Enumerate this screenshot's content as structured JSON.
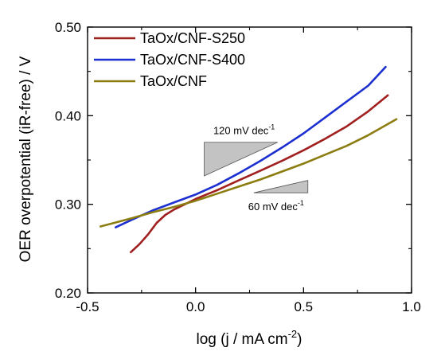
{
  "chart_data": {
    "type": "line",
    "xlabel": {
      "main": "log (j / mA cm",
      "sup": "-2",
      "tail": ")"
    },
    "ylabel": "OER overpotential (iR-free) / V",
    "xlim": [
      -0.5,
      1.0
    ],
    "ylim": [
      0.2,
      0.5
    ],
    "xticks": [
      -0.5,
      0.0,
      0.5,
      1.0
    ],
    "xtick_labels": [
      "-0.5",
      "0.0",
      "0.5",
      "1.0"
    ],
    "yticks": [
      0.2,
      0.3,
      0.4,
      0.5
    ],
    "ytick_labels": [
      "0.20",
      "0.30",
      "0.40",
      "0.50"
    ],
    "grid": false,
    "legend_position": "top-left",
    "series": [
      {
        "name": "TaOx/CNF-S250",
        "color": "#a01f1f",
        "points": [
          [
            -0.3,
            0.246
          ],
          [
            -0.26,
            0.255
          ],
          [
            -0.22,
            0.266
          ],
          [
            -0.18,
            0.279
          ],
          [
            -0.14,
            0.288
          ],
          [
            -0.1,
            0.294
          ],
          [
            -0.05,
            0.3
          ],
          [
            0.0,
            0.306
          ],
          [
            0.05,
            0.311
          ],
          [
            0.1,
            0.316
          ],
          [
            0.2,
            0.327
          ],
          [
            0.3,
            0.338
          ],
          [
            0.4,
            0.349
          ],
          [
            0.5,
            0.361
          ],
          [
            0.6,
            0.374
          ],
          [
            0.7,
            0.388
          ],
          [
            0.8,
            0.405
          ],
          [
            0.89,
            0.423
          ]
        ]
      },
      {
        "name": "TaOx/CNF-S400",
        "color": "#1c2fd0",
        "points": [
          [
            -0.37,
            0.274
          ],
          [
            -0.3,
            0.282
          ],
          [
            -0.2,
            0.293
          ],
          [
            -0.1,
            0.302
          ],
          [
            0.0,
            0.311
          ],
          [
            0.1,
            0.322
          ],
          [
            0.2,
            0.335
          ],
          [
            0.3,
            0.349
          ],
          [
            0.4,
            0.364
          ],
          [
            0.5,
            0.38
          ],
          [
            0.6,
            0.398
          ],
          [
            0.7,
            0.416
          ],
          [
            0.8,
            0.434
          ],
          [
            0.88,
            0.455
          ]
        ]
      },
      {
        "name": "TaOx/CNF",
        "color": "#8c7d10",
        "points": [
          [
            -0.44,
            0.275
          ],
          [
            -0.3,
            0.284
          ],
          [
            -0.2,
            0.291
          ],
          [
            -0.1,
            0.297
          ],
          [
            0.0,
            0.304
          ],
          [
            0.1,
            0.312
          ],
          [
            0.2,
            0.32
          ],
          [
            0.3,
            0.328
          ],
          [
            0.4,
            0.337
          ],
          [
            0.5,
            0.346
          ],
          [
            0.6,
            0.356
          ],
          [
            0.7,
            0.366
          ],
          [
            0.8,
            0.378
          ],
          [
            0.93,
            0.396
          ]
        ]
      }
    ],
    "annotations": [
      {
        "text": "120 mV dec",
        "sup": "-1",
        "triangle": [
          [
            0.04,
            0.332
          ],
          [
            0.04,
            0.37
          ],
          [
            0.38,
            0.37
          ]
        ]
      },
      {
        "text": "60 mV dec",
        "sup": "-1",
        "triangle": [
          [
            0.27,
            0.313
          ],
          [
            0.52,
            0.313
          ],
          [
            0.52,
            0.327
          ]
        ]
      }
    ]
  }
}
